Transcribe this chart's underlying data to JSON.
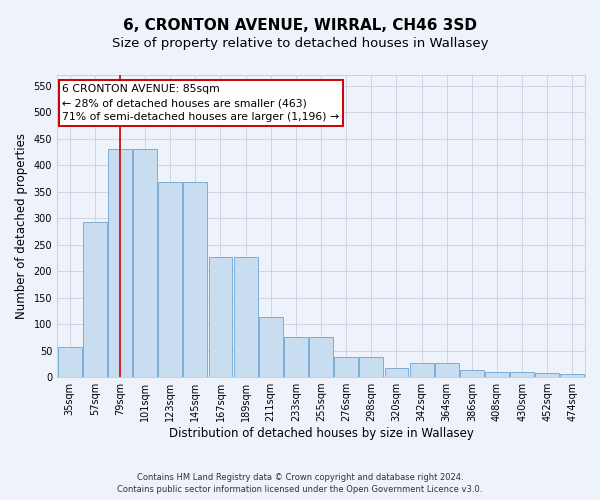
{
  "title": "6, CRONTON AVENUE, WIRRAL, CH46 3SD",
  "subtitle": "Size of property relative to detached houses in Wallasey",
  "xlabel": "Distribution of detached houses by size in Wallasey",
  "ylabel": "Number of detached properties",
  "categories": [
    "35sqm",
    "57sqm",
    "79sqm",
    "101sqm",
    "123sqm",
    "145sqm",
    "167sqm",
    "189sqm",
    "211sqm",
    "233sqm",
    "255sqm",
    "276sqm",
    "298sqm",
    "320sqm",
    "342sqm",
    "364sqm",
    "386sqm",
    "408sqm",
    "430sqm",
    "452sqm",
    "474sqm"
  ],
  "values": [
    57,
    293,
    430,
    430,
    368,
    368,
    226,
    226,
    113,
    76,
    76,
    38,
    38,
    17,
    27,
    27,
    14,
    10,
    10,
    7,
    5
  ],
  "bar_color": "#c9ddf0",
  "bar_edge_color": "#7aadd4",
  "highlight_line_color": "#cc0000",
  "highlight_bar_index": 2,
  "annotation_text": "6 CRONTON AVENUE: 85sqm\n← 28% of detached houses are smaller (463)\n71% of semi-detached houses are larger (1,196) →",
  "annotation_box_facecolor": "#ffffff",
  "annotation_box_edgecolor": "#cc0000",
  "ylim": [
    0,
    570
  ],
  "yticks": [
    0,
    50,
    100,
    150,
    200,
    250,
    300,
    350,
    400,
    450,
    500,
    550
  ],
  "footer1": "Contains HM Land Registry data © Crown copyright and database right 2024.",
  "footer2": "Contains public sector information licensed under the Open Government Licence v3.0.",
  "bg_color": "#eef2fb",
  "grid_color": "#c8cfe0",
  "title_fontsize": 11,
  "subtitle_fontsize": 9.5,
  "ylabel_fontsize": 8.5,
  "xlabel_fontsize": 8.5,
  "tick_fontsize": 7,
  "annotation_fontsize": 7.8,
  "footer_fontsize": 6
}
